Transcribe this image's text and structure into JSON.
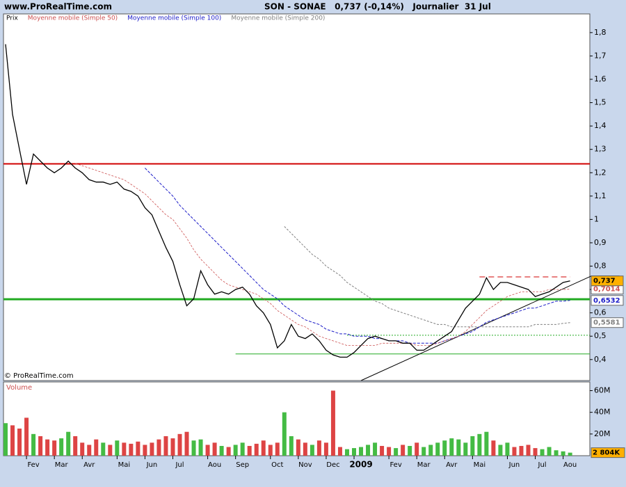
{
  "header": {
    "site": "www.ProRealTime.com",
    "title": "SON - SONAE   0,737 (-0,14%)   Journalier  31 Jul"
  },
  "chart_data": [
    {
      "type": "line",
      "credit": "© ProRealTime.com",
      "categories": [
        null,
        null,
        null,
        null,
        "Fev",
        null,
        null,
        null,
        "Mar",
        null,
        null,
        null,
        "Avr",
        null,
        null,
        null,
        null,
        "Mai",
        null,
        null,
        null,
        "Jun",
        null,
        null,
        null,
        "Jul",
        null,
        null,
        null,
        null,
        "Aou",
        null,
        null,
        null,
        "Sep",
        null,
        null,
        null,
        null,
        "Oct",
        null,
        null,
        null,
        "Nov",
        null,
        null,
        null,
        "Dec",
        null,
        null,
        null,
        "2009",
        null,
        null,
        null,
        null,
        "Fev",
        null,
        null,
        null,
        "Mar",
        null,
        null,
        null,
        "Avr",
        null,
        null,
        null,
        "Mai",
        null,
        null,
        null,
        null,
        "Jun",
        null,
        null,
        null,
        "Jul",
        null,
        null,
        null,
        "Aou"
      ],
      "series": [
        {
          "name": "Prix",
          "color": "#000000",
          "width": 1.3,
          "last_label": "0,737",
          "label_box": "#ffb000",
          "values": [
            1.75,
            1.45,
            1.3,
            1.15,
            1.28,
            1.25,
            1.22,
            1.2,
            1.22,
            1.25,
            1.22,
            1.2,
            1.17,
            1.16,
            1.16,
            1.15,
            1.16,
            1.13,
            1.12,
            1.1,
            1.05,
            1.02,
            0.95,
            0.88,
            0.82,
            0.72,
            0.63,
            0.66,
            0.78,
            0.72,
            0.68,
            0.69,
            0.68,
            0.7,
            0.71,
            0.68,
            0.63,
            0.6,
            0.55,
            0.45,
            0.48,
            0.55,
            0.5,
            0.49,
            0.51,
            0.48,
            0.44,
            0.42,
            0.41,
            0.41,
            0.43,
            0.46,
            0.49,
            0.5,
            0.49,
            0.48,
            0.48,
            0.47,
            0.47,
            0.44,
            0.44,
            0.46,
            0.48,
            0.5,
            0.52,
            0.57,
            0.62,
            0.65,
            0.68,
            0.75,
            0.7,
            0.73,
            0.73,
            0.72,
            0.71,
            0.7,
            0.67,
            0.68,
            0.69,
            0.71,
            0.73,
            0.737
          ]
        },
        {
          "name": "Moyenne mobile (Simple 50)",
          "color": "#cc5050",
          "dash": "3,2",
          "width": 0.8,
          "last_label": "0,7014",
          "values": [
            null,
            null,
            null,
            null,
            null,
            null,
            null,
            null,
            null,
            null,
            1.24,
            1.23,
            1.22,
            1.21,
            1.2,
            1.19,
            1.18,
            1.17,
            1.15,
            1.13,
            1.11,
            1.08,
            1.05,
            1.02,
            1.0,
            0.96,
            0.92,
            0.87,
            0.83,
            0.8,
            0.77,
            0.74,
            0.72,
            0.71,
            0.7,
            0.69,
            0.68,
            0.66,
            0.64,
            0.61,
            0.59,
            0.57,
            0.55,
            0.54,
            0.52,
            0.5,
            0.49,
            0.48,
            0.47,
            0.46,
            0.46,
            0.46,
            0.46,
            0.46,
            0.47,
            0.47,
            0.47,
            0.47,
            0.47,
            0.46,
            0.46,
            0.46,
            0.47,
            0.48,
            0.49,
            0.5,
            0.52,
            0.55,
            0.58,
            0.61,
            0.63,
            0.65,
            0.67,
            0.68,
            0.69,
            0.69,
            0.69,
            0.69,
            0.7,
            0.7,
            0.7,
            0.7014
          ]
        },
        {
          "name": "Moyenne mobile (Simple 100)",
          "color": "#1c1cc8",
          "dash": "4,2",
          "width": 1,
          "last_label": "0,6532",
          "values": [
            null,
            null,
            null,
            null,
            null,
            null,
            null,
            null,
            null,
            null,
            null,
            null,
            null,
            null,
            null,
            null,
            null,
            null,
            null,
            null,
            1.22,
            1.19,
            1.16,
            1.13,
            1.1,
            1.06,
            1.03,
            1.0,
            0.97,
            0.94,
            0.91,
            0.88,
            0.85,
            0.82,
            0.79,
            0.76,
            0.73,
            0.7,
            0.68,
            0.66,
            0.63,
            0.61,
            0.59,
            0.57,
            0.56,
            0.55,
            0.53,
            0.52,
            0.51,
            0.51,
            0.5,
            0.5,
            0.5,
            0.49,
            0.49,
            0.48,
            0.48,
            0.48,
            0.47,
            0.47,
            0.47,
            0.47,
            0.47,
            0.48,
            0.49,
            0.5,
            0.51,
            0.52,
            0.54,
            0.56,
            0.57,
            0.58,
            0.59,
            0.6,
            0.61,
            0.62,
            0.62,
            0.63,
            0.64,
            0.65,
            0.65,
            0.6532
          ]
        },
        {
          "name": "Moyenne mobile (Simple 200)",
          "color": "#808080",
          "dash": "3,2",
          "width": 1,
          "last_label": "0,5581",
          "values": [
            null,
            null,
            null,
            null,
            null,
            null,
            null,
            null,
            null,
            null,
            null,
            null,
            null,
            null,
            null,
            null,
            null,
            null,
            null,
            null,
            null,
            null,
            null,
            null,
            null,
            null,
            null,
            null,
            null,
            null,
            null,
            null,
            null,
            null,
            null,
            null,
            null,
            null,
            null,
            null,
            0.97,
            0.94,
            0.91,
            0.88,
            0.85,
            0.83,
            0.8,
            0.78,
            0.76,
            0.73,
            0.71,
            0.69,
            0.67,
            0.65,
            0.64,
            0.62,
            0.61,
            0.6,
            0.59,
            0.58,
            0.57,
            0.56,
            0.55,
            0.55,
            0.54,
            0.54,
            0.54,
            0.54,
            0.54,
            0.54,
            0.54,
            0.54,
            0.54,
            0.54,
            0.54,
            0.54,
            0.55,
            0.55,
            0.55,
            0.55,
            0.555,
            0.5581
          ]
        }
      ],
      "levels": [
        {
          "value": 1.238,
          "color": "#d00000",
          "width": 2
        },
        {
          "value": 0.658,
          "color": "#22aa22",
          "width": 3
        },
        {
          "value": 0.424,
          "from": 33,
          "color": "#22aa22",
          "width": 1
        },
        {
          "value": 0.504,
          "from": 49,
          "color": "#22aa22",
          "width": 1,
          "dash": "2,2"
        },
        {
          "value": 0.754,
          "from": 68,
          "to": 81,
          "color": "#d00000",
          "width": 1,
          "dash": "8,5"
        }
      ],
      "trendline": {
        "x": [
          51,
          84
        ],
        "y": [
          0.31,
          0.757
        ],
        "color": "#000000"
      },
      "ylim": [
        0.31,
        1.88
      ],
      "yticks": [
        {
          "value": 0.4,
          "label": "0,4"
        },
        {
          "value": 0.5,
          "label": "0,5"
        },
        {
          "value": 0.6,
          "label": "0,6"
        },
        {
          "value": 0.7,
          "label": "0,7"
        },
        {
          "value": 0.8,
          "label": "0,8"
        },
        {
          "value": 0.9,
          "label": "0,9"
        },
        1,
        {
          "value": 1.1,
          "label": "1,1"
        },
        {
          "value": 1.2,
          "label": "1,2"
        },
        {
          "value": 1.3,
          "label": "1,3"
        },
        {
          "value": 1.4,
          "label": "1,4"
        },
        {
          "value": 1.5,
          "label": "1,5"
        },
        {
          "value": 1.6,
          "label": "1,6"
        },
        {
          "value": 1.7,
          "label": "1,7"
        },
        {
          "value": 1.8,
          "label": "1,8"
        }
      ]
    },
    {
      "type": "bar",
      "title": "Volume",
      "up_color": "#44bb44",
      "down_color": "#dd4444",
      "values": [
        30,
        28,
        25,
        35,
        20,
        18,
        15,
        14,
        16,
        22,
        18,
        12,
        10,
        15,
        12,
        10,
        14,
        12,
        11,
        13,
        10,
        12,
        15,
        18,
        16,
        20,
        22,
        14,
        15,
        10,
        12,
        9,
        8,
        10,
        12,
        9,
        11,
        14,
        10,
        12,
        40,
        18,
        15,
        12,
        10,
        14,
        12,
        60,
        8,
        6,
        7,
        8,
        10,
        12,
        9,
        8,
        7,
        10,
        9,
        12,
        8,
        10,
        12,
        14,
        16,
        15,
        12,
        18,
        20,
        22,
        14,
        10,
        12,
        8,
        9,
        10,
        7,
        6,
        8,
        5,
        4,
        2.804
      ],
      "last_label": "2 804K",
      "label_box": "#ffb000",
      "ylim": [
        0,
        68
      ],
      "yticks": [
        {
          "value": 20,
          "label": "20M"
        },
        {
          "value": 40,
          "label": "40M"
        },
        {
          "value": 60,
          "label": "60M"
        }
      ]
    }
  ]
}
